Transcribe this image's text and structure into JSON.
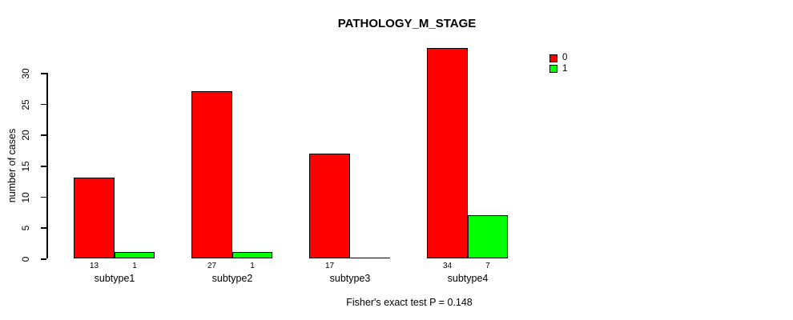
{
  "title": "PATHOLOGY_M_STAGE",
  "chart_data": {
    "type": "bar",
    "title": "PATHOLOGY_M_STAGE",
    "categories": [
      "subtype1",
      "subtype2",
      "subtype3",
      "subtype4"
    ],
    "series": [
      {
        "name": "0",
        "color": "#ff0000",
        "values": [
          13,
          27,
          17,
          34
        ]
      },
      {
        "name": "1",
        "color": "#00ff00",
        "values": [
          1,
          1,
          0,
          7
        ]
      }
    ],
    "xlabel": "",
    "ylabel": "number of cases",
    "yticks": [
      0,
      5,
      10,
      15,
      20,
      25,
      30
    ],
    "ylim": [
      0,
      34
    ],
    "grid": false,
    "legend_position": "top-right",
    "bar_value_labels": [
      [
        "13",
        "27",
        "17",
        "34"
      ],
      [
        "1",
        "1",
        "",
        "7"
      ]
    ],
    "annotation": "Fisher's exact test P = 0.148"
  }
}
